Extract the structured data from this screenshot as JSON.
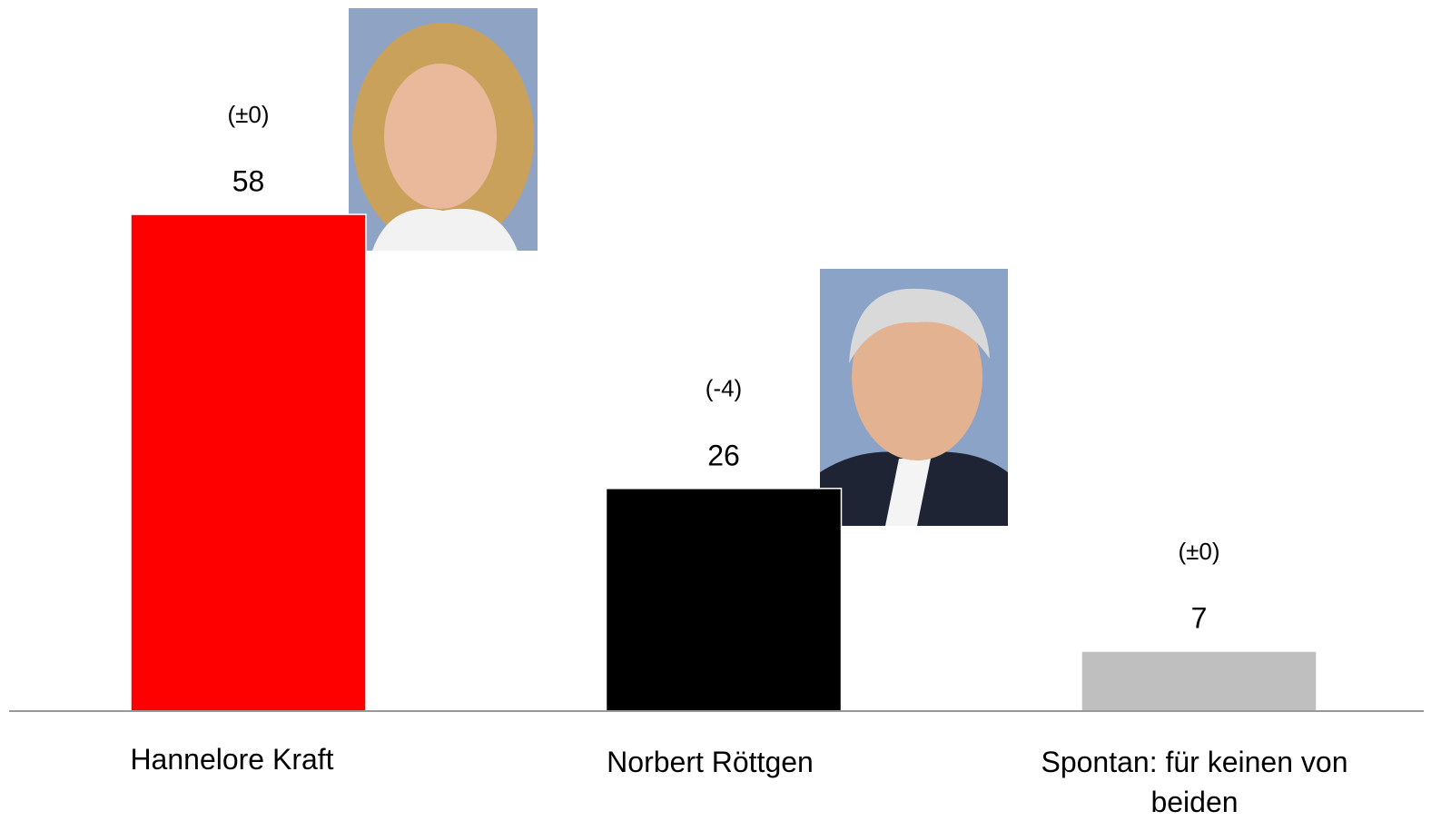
{
  "chart_data": {
    "type": "bar",
    "categories": [
      "Hannelore Kraft",
      "Norbert Röttgen",
      "Spontan: für keinen von beiden"
    ],
    "values": [
      58,
      26,
      7
    ],
    "change_labels": [
      "(±0)",
      "(-4)",
      "(±0)"
    ],
    "colors": [
      "#ff0000",
      "#000000",
      "#bfbfbf"
    ]
  }
}
